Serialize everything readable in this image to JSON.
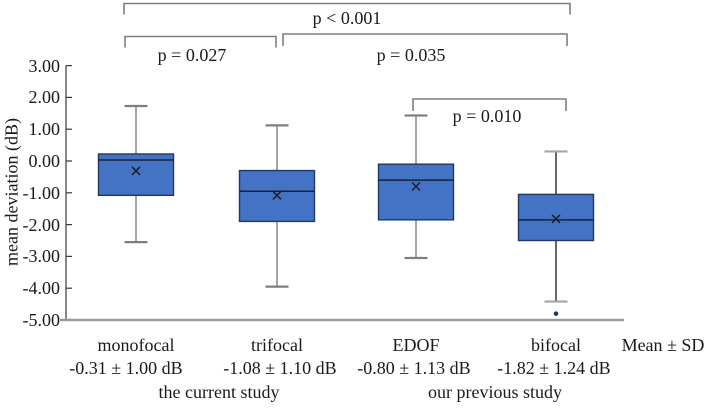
{
  "chart_data": {
    "type": "box",
    "title": "",
    "ylabel": "mean deviation (dB)",
    "xlabel": "",
    "ylim": [
      -5,
      3
    ],
    "grid": "off",
    "legend": "none",
    "yticks": [
      3,
      2,
      1,
      0,
      -1,
      -2,
      -3,
      -4,
      -5
    ],
    "ytick_labels": [
      "3.00",
      "2.00",
      "1.00",
      "0.00",
      "-1.00",
      "-2.00",
      "-3.00",
      "-4.00",
      "-5.00"
    ],
    "categories": [
      "monofocal",
      "trifocal",
      "EDOF",
      "bifocal"
    ],
    "mean_sd_header": "Mean ± SD",
    "mean_sd_values": [
      "-0.31 ± 1.00 dB",
      "-1.08 ± 1.10 dB",
      "-0.80 ± 1.13 dB",
      "-1.82 ± 1.24 dB"
    ],
    "group_labels": [
      "the current study",
      "our previous study"
    ],
    "series": [
      {
        "name": "monofocal",
        "mean": -0.31,
        "sd": 1.0,
        "whisker_high": 1.73,
        "q3": 0.22,
        "median": 0.03,
        "q1": -1.08,
        "whisker_low": -2.55,
        "outliers": [],
        "stem_color": "#7f7f7f",
        "cap_color": "#7f7f7f"
      },
      {
        "name": "trifocal",
        "mean": -1.08,
        "sd": 1.1,
        "whisker_high": 1.12,
        "q3": -0.3,
        "median": -0.95,
        "q1": -1.9,
        "whisker_low": -3.95,
        "outliers": [],
        "stem_color": "#7f7f7f",
        "cap_color": "#7f7f7f"
      },
      {
        "name": "EDOF",
        "mean": -0.8,
        "sd": 1.13,
        "whisker_high": 1.43,
        "q3": -0.1,
        "median": -0.6,
        "q1": -1.85,
        "whisker_low": -3.05,
        "outliers": [],
        "stem_color": "#7f7f7f",
        "cap_color": "#7f7f7f"
      },
      {
        "name": "bifocal",
        "mean": -1.82,
        "sd": 1.24,
        "whisker_high": 0.3,
        "q3": -1.05,
        "median": -1.85,
        "q1": -2.5,
        "whisker_low": -4.42,
        "outliers": [
          -4.8
        ],
        "stem_color": "#262626",
        "cap_color": "#a6a6a6"
      }
    ],
    "significance_brackets": [
      {
        "label": "p < 0.001",
        "from": "monofocal",
        "to": "bifocal"
      },
      {
        "label": "p = 0.027",
        "from": "monofocal",
        "to": "trifocal"
      },
      {
        "label": "p = 0.035",
        "from": "trifocal",
        "to": "bifocal"
      },
      {
        "label": "p = 0.010",
        "from": "EDOF",
        "to": "bifocal"
      }
    ],
    "colors": {
      "box_fill": "#4472C4",
      "box_border": "#1F3864",
      "median": "#16233E",
      "mean_marker": "#1a1a1a",
      "outlier": "#1F3864",
      "bracket": "#7f7f7f",
      "axis": "#3a3a3a",
      "baseline": "#9a9a9a",
      "text": "#1a1a1a"
    }
  }
}
